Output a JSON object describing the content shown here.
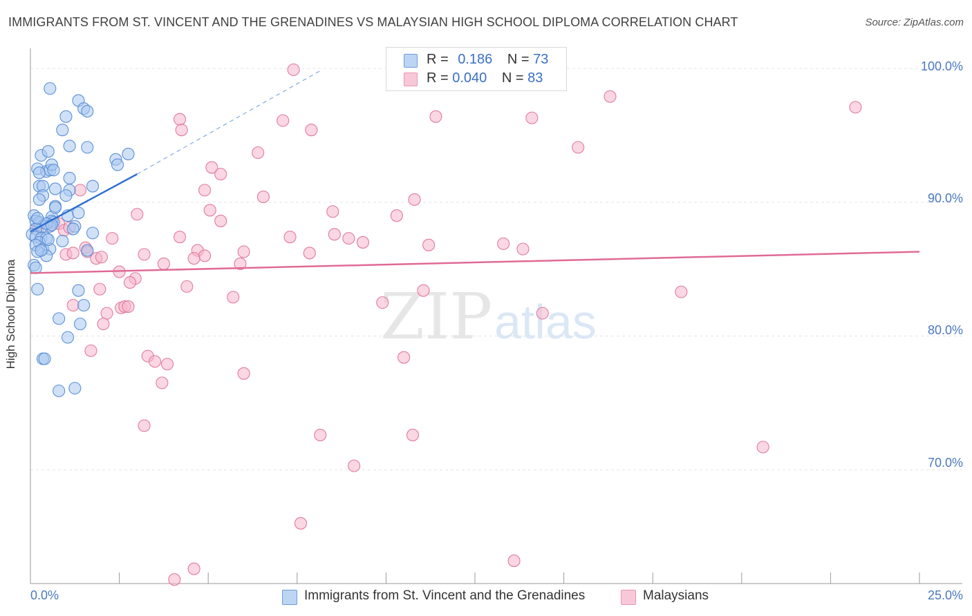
{
  "header": {
    "title": "IMMIGRANTS FROM ST. VINCENT AND THE GRENADINES VS MALAYSIAN HIGH SCHOOL DIPLOMA CORRELATION CHART",
    "source": "Source: ZipAtlas.com"
  },
  "watermark": {
    "zip": "ZIP",
    "atlas": "atlas"
  },
  "legend": {
    "blue": {
      "r_label": "R =",
      "r_value": "0.186",
      "n_label": "N =",
      "n_value": "73"
    },
    "pink": {
      "r_label": "R =",
      "r_value": "0.040",
      "n_label": "N =",
      "n_value": "83"
    }
  },
  "bottom_legend": {
    "blue_label": "Immigrants from St. Vincent and the Grenadines",
    "pink_label": "Malaysians"
  },
  "colors": {
    "blue_fill": "#a9c8f0",
    "blue_stroke": "#5b8fd6",
    "blue_line": "#2f6fcf",
    "pink_fill": "#f6b6cb",
    "pink_stroke": "#e07aa0",
    "pink_line": "#e06a95",
    "tick_text": "#4a78c0",
    "grid": "#e3e3e3"
  },
  "chart_data": {
    "type": "scatter",
    "title": "IMMIGRANTS FROM ST. VINCENT AND THE GRENADINES VS MALAYSIAN HIGH SCHOOL DIPLOMA CORRELATION CHART",
    "xlabel": "",
    "ylabel": "High School Diploma",
    "xlim": [
      0,
      25
    ],
    "ylim": [
      61.5,
      101.5
    ],
    "x_tick_labels": [
      "0.0%",
      "25.0%"
    ],
    "y_ticks": [
      70,
      80,
      90,
      100
    ],
    "y_tick_labels": [
      "70.0%",
      "80.0%",
      "90.0%",
      "100.0%"
    ],
    "grid": true,
    "legend_position": "top-center",
    "series": [
      {
        "name": "Immigrants from St. Vincent and the Grenadines",
        "color": "#a9c8f0",
        "R": 0.186,
        "N": 73,
        "trend": {
          "x": [
            0,
            3.0
          ],
          "y": [
            87.8,
            92.1
          ]
        },
        "trend_dashed": {
          "x": [
            3.0,
            8.2
          ],
          "y": [
            92.1,
            99.9
          ]
        },
        "points": [
          [
            0.55,
            98.5
          ],
          [
            1.35,
            97.6
          ],
          [
            1.5,
            97.0
          ],
          [
            1.6,
            96.8
          ],
          [
            1.0,
            96.4
          ],
          [
            0.9,
            95.4
          ],
          [
            0.3,
            93.5
          ],
          [
            0.5,
            93.8
          ],
          [
            1.1,
            94.2
          ],
          [
            1.6,
            94.1
          ],
          [
            2.4,
            93.2
          ],
          [
            2.75,
            93.6
          ],
          [
            2.45,
            92.8
          ],
          [
            0.2,
            92.5
          ],
          [
            0.45,
            92.3
          ],
          [
            0.55,
            92.4
          ],
          [
            0.6,
            92.8
          ],
          [
            0.65,
            92.4
          ],
          [
            0.25,
            92.2
          ],
          [
            1.1,
            91.8
          ],
          [
            0.25,
            91.2
          ],
          [
            0.35,
            91.2
          ],
          [
            0.7,
            91.0
          ],
          [
            1.1,
            90.9
          ],
          [
            1.75,
            91.2
          ],
          [
            0.35,
            90.5
          ],
          [
            0.25,
            90.2
          ],
          [
            1.0,
            90.5
          ],
          [
            0.7,
            89.7
          ],
          [
            0.6,
            88.9
          ],
          [
            0.1,
            89.0
          ],
          [
            0.15,
            88.6
          ],
          [
            0.25,
            88.5
          ],
          [
            0.6,
            88.6
          ],
          [
            0.65,
            88.5
          ],
          [
            0.55,
            88.2
          ],
          [
            1.05,
            89.0
          ],
          [
            1.35,
            89.2
          ],
          [
            0.35,
            88.2
          ],
          [
            0.45,
            88.4
          ],
          [
            0.15,
            88.0
          ],
          [
            1.25,
            88.2
          ],
          [
            1.75,
            87.7
          ],
          [
            0.05,
            87.6
          ],
          [
            0.15,
            87.4
          ],
          [
            0.3,
            87.3
          ],
          [
            0.45,
            87.3
          ],
          [
            0.25,
            87.0
          ],
          [
            0.15,
            86.8
          ],
          [
            0.9,
            87.1
          ],
          [
            0.35,
            86.5
          ],
          [
            0.55,
            86.5
          ],
          [
            0.45,
            86.0
          ],
          [
            1.6,
            86.4
          ],
          [
            0.2,
            86.3
          ],
          [
            0.1,
            85.3
          ],
          [
            0.15,
            85.1
          ],
          [
            0.2,
            83.5
          ],
          [
            1.35,
            83.4
          ],
          [
            1.5,
            82.3
          ],
          [
            0.8,
            81.3
          ],
          [
            1.4,
            80.9
          ],
          [
            1.05,
            79.9
          ],
          [
            0.35,
            78.3
          ],
          [
            0.4,
            78.3
          ],
          [
            0.8,
            75.9
          ],
          [
            1.25,
            76.1
          ],
          [
            0.6,
            88.3
          ],
          [
            0.3,
            86.4
          ],
          [
            1.2,
            88.0
          ],
          [
            0.5,
            87.2
          ],
          [
            0.7,
            89.6
          ],
          [
            0.2,
            88.8
          ]
        ]
      },
      {
        "name": "Malaysians",
        "color": "#f6b6cb",
        "R": 0.04,
        "N": 83,
        "trend": {
          "x": [
            0,
            25
          ],
          "y": [
            84.7,
            86.3
          ]
        },
        "points": [
          [
            7.4,
            99.9
          ],
          [
            16.3,
            97.9
          ],
          [
            23.2,
            97.1
          ],
          [
            11.4,
            96.4
          ],
          [
            14.1,
            96.3
          ],
          [
            4.2,
            96.2
          ],
          [
            7.1,
            96.1
          ],
          [
            4.25,
            95.4
          ],
          [
            7.9,
            95.4
          ],
          [
            15.4,
            94.1
          ],
          [
            6.4,
            93.7
          ],
          [
            5.1,
            92.6
          ],
          [
            5.35,
            92.1
          ],
          [
            4.9,
            90.9
          ],
          [
            1.4,
            90.9
          ],
          [
            6.55,
            90.4
          ],
          [
            10.8,
            90.2
          ],
          [
            5.05,
            89.4
          ],
          [
            8.5,
            89.3
          ],
          [
            3.0,
            89.1
          ],
          [
            10.3,
            89.0
          ],
          [
            5.35,
            88.6
          ],
          [
            0.8,
            88.4
          ],
          [
            0.25,
            88.4
          ],
          [
            0.6,
            88.3
          ],
          [
            0.2,
            88.0
          ],
          [
            0.95,
            87.9
          ],
          [
            1.1,
            88.1
          ],
          [
            4.2,
            87.4
          ],
          [
            2.3,
            87.3
          ],
          [
            7.3,
            87.4
          ],
          [
            8.55,
            87.6
          ],
          [
            8.95,
            87.3
          ],
          [
            9.35,
            87.0
          ],
          [
            11.2,
            86.8
          ],
          [
            13.3,
            86.9
          ],
          [
            4.7,
            86.4
          ],
          [
            1.55,
            86.6
          ],
          [
            1.6,
            86.3
          ],
          [
            1.0,
            86.1
          ],
          [
            1.2,
            86.2
          ],
          [
            3.2,
            86.1
          ],
          [
            4.9,
            86.0
          ],
          [
            4.6,
            85.8
          ],
          [
            6.0,
            86.3
          ],
          [
            7.85,
            86.2
          ],
          [
            13.85,
            86.5
          ],
          [
            1.85,
            85.8
          ],
          [
            3.75,
            85.4
          ],
          [
            5.9,
            85.4
          ],
          [
            2.5,
            84.8
          ],
          [
            2.95,
            84.3
          ],
          [
            2.8,
            84.0
          ],
          [
            4.4,
            83.7
          ],
          [
            1.95,
            83.5
          ],
          [
            11.05,
            83.4
          ],
          [
            18.3,
            83.3
          ],
          [
            5.7,
            82.9
          ],
          [
            9.9,
            82.5
          ],
          [
            1.2,
            82.3
          ],
          [
            2.55,
            82.1
          ],
          [
            2.65,
            82.2
          ],
          [
            2.75,
            82.2
          ],
          [
            2.15,
            81.7
          ],
          [
            14.4,
            81.7
          ],
          [
            2.05,
            80.9
          ],
          [
            1.7,
            78.9
          ],
          [
            3.3,
            78.5
          ],
          [
            10.5,
            78.4
          ],
          [
            3.5,
            78.1
          ],
          [
            3.85,
            77.9
          ],
          [
            6.0,
            77.2
          ],
          [
            3.7,
            76.5
          ],
          [
            3.2,
            73.3
          ],
          [
            8.15,
            72.6
          ],
          [
            10.75,
            72.6
          ],
          [
            20.6,
            71.7
          ],
          [
            9.1,
            70.3
          ],
          [
            7.6,
            66.0
          ],
          [
            13.6,
            63.2
          ],
          [
            4.6,
            62.6
          ],
          [
            4.05,
            61.8
          ],
          [
            2.0,
            85.9
          ]
        ]
      }
    ]
  }
}
